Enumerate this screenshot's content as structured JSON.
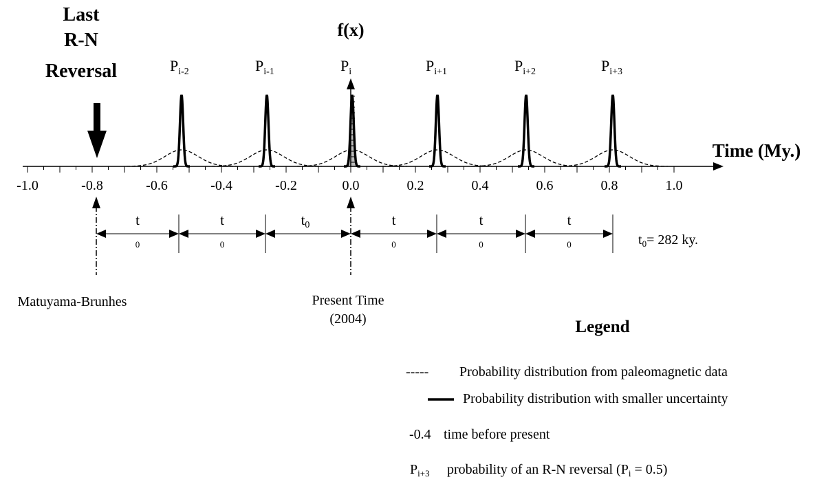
{
  "title": {
    "line1": "Last",
    "line2": "R-N",
    "line3": "Reversal"
  },
  "y_axis_label": "f(x)",
  "x_axis_label": "Time (My.)",
  "tick_labels": [
    "-1.0",
    "-0.8",
    "-0.6",
    "-0.4",
    "-0.2",
    "0.0",
    "0.2",
    "0.4",
    "0.6",
    "0.8",
    "1.0"
  ],
  "peaks": [
    {
      "P": "P",
      "sub": "i-2"
    },
    {
      "P": "P",
      "sub": "i-1"
    },
    {
      "P": "P",
      "sub": "i"
    },
    {
      "P": "P",
      "sub": "i+1"
    },
    {
      "P": "P",
      "sub": "i+2"
    },
    {
      "P": "P",
      "sub": "i+3"
    }
  ],
  "intervals": [
    {
      "top": "t",
      "bottom": "0"
    },
    {
      "top": "t",
      "bottom": "0"
    },
    {
      "top": "t",
      "sub": "0"
    },
    {
      "top": "t",
      "bottom": "0"
    },
    {
      "top": "t",
      "bottom": "0"
    },
    {
      "top": "t",
      "bottom": "0"
    }
  ],
  "t0_note": {
    "t": "t",
    "sub": "0",
    "rest": "= 282 ky."
  },
  "markers": {
    "left_label": "Matuyama-Brunhes",
    "center_label_1": "Present Time",
    "center_label_2": "(2004)"
  },
  "legend": {
    "title": "Legend",
    "dashes": "-----",
    "item1": "Probability distribution from paleomagnetic data",
    "item2": "Probability distribution with smaller uncertainty",
    "item3_key": "-0.4",
    "item3": "time before present",
    "item4_key_P": "P",
    "item4_key_sub": "i+3",
    "item4_pre": "probability of an R-N reversal (P",
    "item4_sub": "i",
    "item4_post": " = 0.5)"
  }
}
